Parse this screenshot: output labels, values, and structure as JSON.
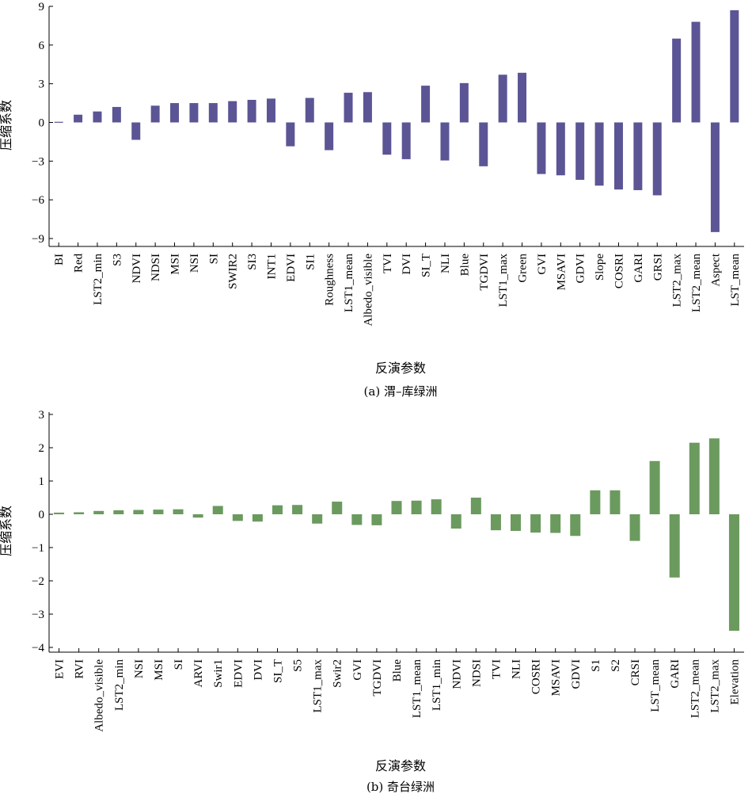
{
  "chart_data": [
    {
      "type": "bar",
      "caption": "(a) 渭–库绿洲",
      "xlabel": "反演参数",
      "ylabel": "压缩系数",
      "ylim": [
        -9.5,
        9
      ],
      "yticks": [
        9,
        6,
        3,
        0,
        -3,
        -6,
        -9
      ],
      "ytick_labels": [
        "9",
        "6",
        "3",
        "0",
        "−3",
        "−6",
        "−9"
      ],
      "color": "#5b5595",
      "grid": false,
      "categories": [
        "BI",
        "Red",
        "LST2_min",
        "S3",
        "NDVI",
        "NDSI",
        "MSI",
        "NSI",
        "SI",
        "SWIR2",
        "SI3",
        "INT1",
        "EDVI",
        "SI1",
        "Roughness",
        "LST1_mean",
        "Albedo_visible",
        "TVI",
        "DVI",
        "SI_T",
        "NLI",
        "Blue",
        "TGDVI",
        "LST1_max",
        "Green",
        "GVI",
        "MSAVI",
        "GDVI",
        "Slope",
        "COSRI",
        "GARI",
        "GRSI",
        "LST2_max",
        "LST2_mean",
        "Aspect",
        "LST_mean"
      ],
      "values": [
        0.05,
        0.6,
        0.85,
        1.2,
        -1.35,
        1.3,
        1.5,
        1.5,
        1.5,
        1.65,
        1.75,
        1.85,
        -1.85,
        1.9,
        -2.15,
        2.3,
        2.35,
        -2.5,
        -2.85,
        2.85,
        -2.95,
        3.05,
        -3.4,
        3.7,
        3.85,
        -4.0,
        -4.1,
        -4.45,
        -4.9,
        -5.2,
        -5.25,
        -5.65,
        6.5,
        7.8,
        -8.5,
        8.7
      ]
    },
    {
      "type": "bar",
      "caption": "(b) 奇台绿洲",
      "xlabel": "反演参数",
      "ylabel": "压缩系数",
      "ylim": [
        -4.2,
        3
      ],
      "yticks": [
        3,
        2,
        1,
        0,
        -1,
        -2,
        -3,
        -4
      ],
      "ytick_labels": [
        "3",
        "2",
        "1",
        "0",
        "−1",
        "−2",
        "−3",
        "−4"
      ],
      "color": "#6b9a5e",
      "grid": false,
      "categories": [
        "EVI",
        "RVI",
        "Albedo_visible",
        "LST2_min",
        "NSI",
        "MSI",
        "SI",
        "ARVI",
        "Swir1",
        "EDVI",
        "DVI",
        "SI_T",
        "S5",
        "LST1_max",
        "Swir2",
        "GVI",
        "TGDVI",
        "Blue",
        "LST1_mean",
        "LST1_min",
        "NDVI",
        "NDSI",
        "TVI",
        "NLI",
        "COSRI",
        "MSAVI",
        "GDVI",
        "S1",
        "S2",
        "CRSI",
        "LST_mean",
        "GARI",
        "LST2_mean",
        "LST2_max",
        "Elevation"
      ],
      "values": [
        0.05,
        0.06,
        0.1,
        0.12,
        0.13,
        0.14,
        0.15,
        -0.1,
        0.25,
        -0.2,
        -0.22,
        0.27,
        0.28,
        -0.28,
        0.38,
        -0.32,
        -0.33,
        0.4,
        0.41,
        0.45,
        -0.43,
        0.5,
        -0.48,
        -0.5,
        -0.55,
        -0.56,
        -0.65,
        0.72,
        0.72,
        -0.8,
        1.6,
        -1.9,
        2.15,
        2.28,
        -3.5
      ]
    }
  ]
}
